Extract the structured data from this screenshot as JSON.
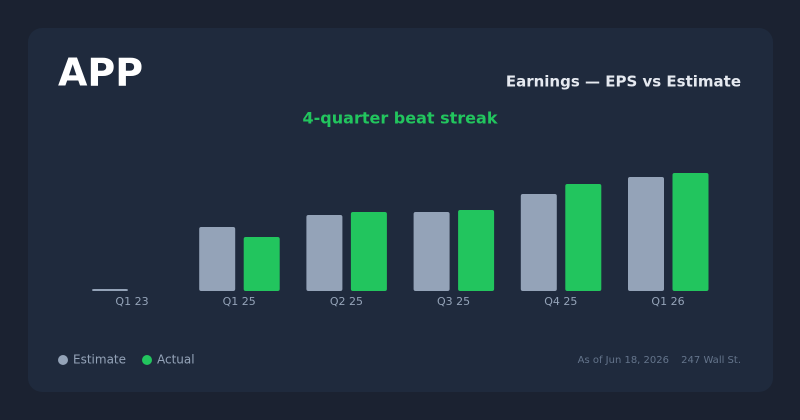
{
  "chart_data": {
    "type": "bar",
    "ticker": "APP",
    "title": "Earnings — EPS vs Estimate",
    "annotation": "4-quarter beat streak",
    "categories": [
      "Q1 23",
      "Q1 25",
      "Q2 25",
      "Q3 25",
      "Q4 25",
      "Q1 26"
    ],
    "series": [
      {
        "name": "Estimate",
        "color": "#94a3b8",
        "values": [
          2,
          64,
          76,
          79,
          97,
          114
        ]
      },
      {
        "name": "Actual",
        "color": "#22c55e",
        "values": [
          null,
          54,
          79,
          81,
          107,
          118
        ]
      }
    ],
    "ylim": [
      0,
      120
    ],
    "as_of": "As of Jun 18, 2026",
    "source": "247 Wall St."
  }
}
